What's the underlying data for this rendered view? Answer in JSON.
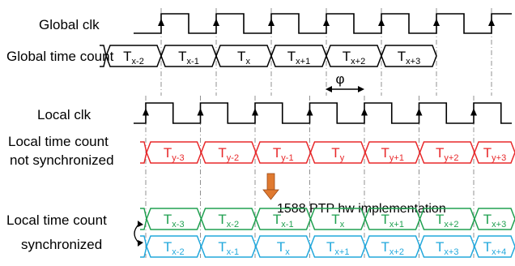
{
  "labels": {
    "global_clk": "Global clk",
    "global_count": "Global time count",
    "local_clk": "Local clk",
    "local_unsync_1": "Local time count",
    "local_unsync_2": "not synchronized",
    "local_sync_1": "Local time count",
    "local_sync_2": "synchronized"
  },
  "phase_label": "φ",
  "ptp_label": "1588 PTP hw implementation",
  "colors": {
    "black": "#000000",
    "red": "#e8282a",
    "green": "#20a050",
    "cyan": "#22a8dc",
    "arrow": "#e07a30",
    "guide": "#909090"
  },
  "global_count": [
    {
      "base": "T",
      "sub": "x-2"
    },
    {
      "base": "T",
      "sub": "x-1"
    },
    {
      "base": "T",
      "sub": "x"
    },
    {
      "base": "T",
      "sub": "x+1"
    },
    {
      "base": "T",
      "sub": "x+2"
    },
    {
      "base": "T",
      "sub": "x+3"
    }
  ],
  "local_unsync": [
    {
      "base": "T",
      "sub": "y-3"
    },
    {
      "base": "T",
      "sub": "y-2"
    },
    {
      "base": "T",
      "sub": "y-1"
    },
    {
      "base": "T",
      "sub": "y"
    },
    {
      "base": "T",
      "sub": "y+1"
    },
    {
      "base": "T",
      "sub": "y+2"
    },
    {
      "base": "T",
      "sub": "y+3"
    }
  ],
  "local_sync_a": [
    {
      "base": "T",
      "sub": "x-3"
    },
    {
      "base": "T",
      "sub": "x-2"
    },
    {
      "base": "T",
      "sub": "x-1"
    },
    {
      "base": "T",
      "sub": "x"
    },
    {
      "base": "T",
      "sub": "x+1"
    },
    {
      "base": "T",
      "sub": "x+2"
    },
    {
      "base": "T",
      "sub": "x+3"
    }
  ],
  "local_sync_b": [
    {
      "base": "T",
      "sub": "x-2"
    },
    {
      "base": "T",
      "sub": "x-1"
    },
    {
      "base": "T",
      "sub": "x"
    },
    {
      "base": "T",
      "sub": "x+1"
    },
    {
      "base": "T",
      "sub": "x+2"
    },
    {
      "base": "T",
      "sub": "x+3"
    },
    {
      "base": "T",
      "sub": "x+4"
    }
  ]
}
